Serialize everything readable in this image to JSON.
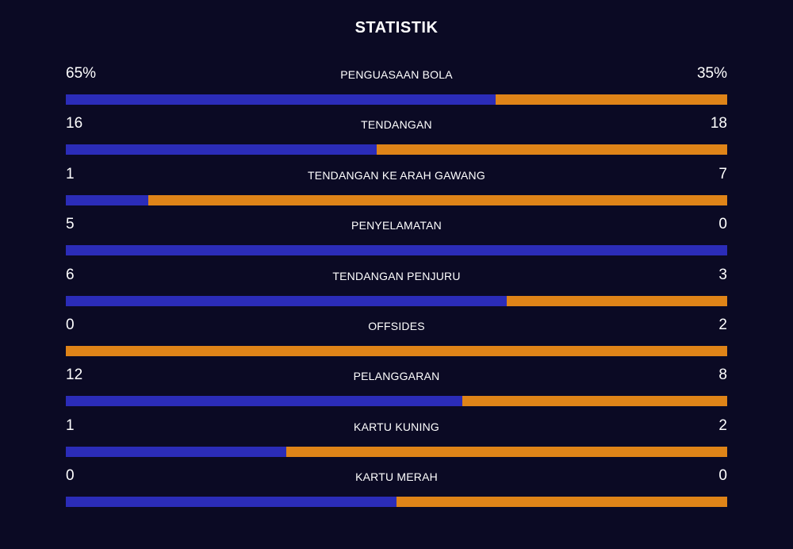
{
  "title": "STATISTIK",
  "colors": {
    "background": "#0b0a24",
    "home_bar": "#2b2cb8",
    "away_bar": "#df8418"
  },
  "stats": [
    {
      "label": "PENGUASAAN BOLA",
      "home": "65%",
      "away": "35%",
      "home_share": 0.65
    },
    {
      "label": "TENDANGAN",
      "home": "16",
      "away": "18",
      "home_share": 0.47
    },
    {
      "label": "TENDANGAN KE ARAH GAWANG",
      "home": "1",
      "away": "7",
      "home_share": 0.125
    },
    {
      "label": "PENYELAMATAN",
      "home": "5",
      "away": "0",
      "home_share": 1.0
    },
    {
      "label": "TENDANGAN PENJURU",
      "home": "6",
      "away": "3",
      "home_share": 0.667
    },
    {
      "label": "OFFSIDES",
      "home": "0",
      "away": "2",
      "home_share": 0.0
    },
    {
      "label": "PELANGGARAN",
      "home": "12",
      "away": "8",
      "home_share": 0.6
    },
    {
      "label": "KARTU KUNING",
      "home": "1",
      "away": "2",
      "home_share": 0.333
    },
    {
      "label": "KARTU MERAH",
      "home": "0",
      "away": "0",
      "home_share": 0.5
    }
  ]
}
